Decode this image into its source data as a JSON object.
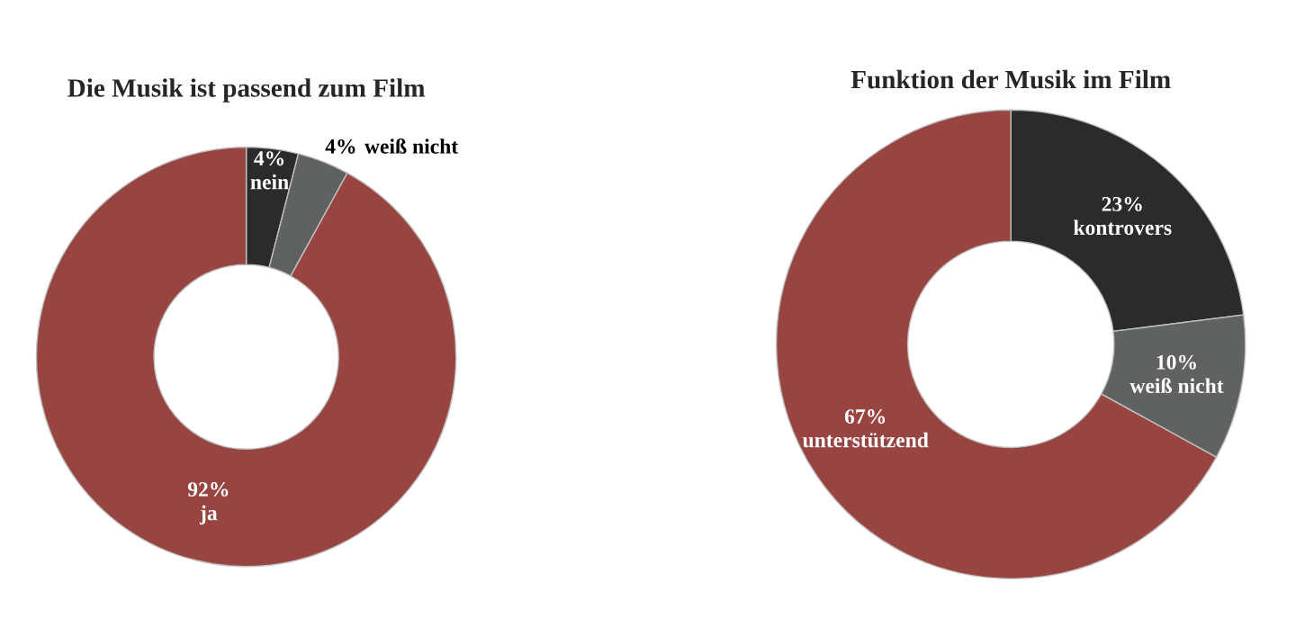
{
  "chart_data": [
    {
      "type": "donut",
      "title": "Die Musik ist passend zum Film",
      "categories": [
        "nein",
        "weiß nicht",
        "ja"
      ],
      "values": [
        4,
        4,
        92
      ],
      "value_labels": [
        "4%",
        "4%",
        "92%"
      ],
      "colors": [
        "#2b2b2b",
        "#606262",
        "#984542"
      ]
    },
    {
      "type": "donut",
      "title": "Funktion der Musik im Film",
      "categories": [
        "kontrovers",
        "weiß nicht",
        "unterstützend"
      ],
      "values": [
        23,
        10,
        67
      ],
      "value_labels": [
        "23%",
        "10%",
        "67%"
      ],
      "colors": [
        "#2b2b2b",
        "#606262",
        "#984542"
      ]
    }
  ]
}
